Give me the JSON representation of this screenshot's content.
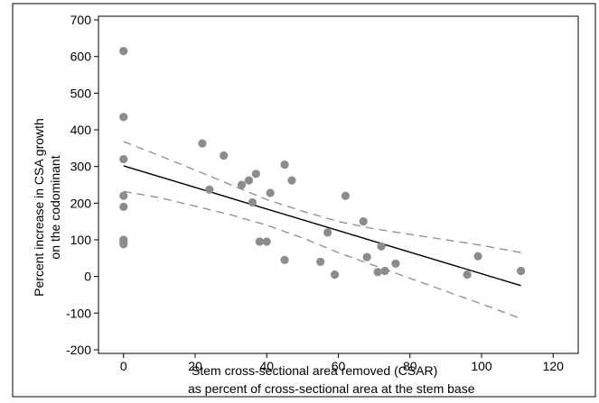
{
  "chart_data": {
    "type": "scatter",
    "title": "",
    "xlabel_lines": [
      "Stem cross-sectional area removed (CSAR)",
      "as percent of cross-sectional area at the stem base"
    ],
    "ylabel_lines": [
      "Percent increase in CSA growth",
      "on the codominant"
    ],
    "xlim": [
      -7,
      127
    ],
    "ylim": [
      -210,
      710
    ],
    "xticks": [
      0,
      20,
      40,
      60,
      80,
      100,
      120
    ],
    "yticks": [
      -200,
      -100,
      0,
      100,
      200,
      300,
      400,
      500,
      600,
      700
    ],
    "ytick_labels": [
      "-200",
      "-100",
      "0",
      "100",
      "200",
      "300",
      "400",
      "500",
      "600",
      "700"
    ],
    "grid": false,
    "point_color": "#8c8c8c",
    "points": [
      {
        "x": 0,
        "y": 615
      },
      {
        "x": 0,
        "y": 435
      },
      {
        "x": 0,
        "y": 320
      },
      {
        "x": 0,
        "y": 220
      },
      {
        "x": 0,
        "y": 190
      },
      {
        "x": 0,
        "y": 100
      },
      {
        "x": 0,
        "y": 95
      },
      {
        "x": 0,
        "y": 88
      },
      {
        "x": 24,
        "y": 237
      },
      {
        "x": 22,
        "y": 363
      },
      {
        "x": 28,
        "y": 330
      },
      {
        "x": 33,
        "y": 250
      },
      {
        "x": 35,
        "y": 262
      },
      {
        "x": 37,
        "y": 280
      },
      {
        "x": 36,
        "y": 202
      },
      {
        "x": 38,
        "y": 95
      },
      {
        "x": 40,
        "y": 95
      },
      {
        "x": 41,
        "y": 228
      },
      {
        "x": 45,
        "y": 305
      },
      {
        "x": 47,
        "y": 262
      },
      {
        "x": 45,
        "y": 45
      },
      {
        "x": 55,
        "y": 40
      },
      {
        "x": 57,
        "y": 120
      },
      {
        "x": 59,
        "y": 5
      },
      {
        "x": 62,
        "y": 220
      },
      {
        "x": 67,
        "y": 150
      },
      {
        "x": 68,
        "y": 53
      },
      {
        "x": 72,
        "y": 82
      },
      {
        "x": 71,
        "y": 12
      },
      {
        "x": 73,
        "y": 15
      },
      {
        "x": 76,
        "y": 35
      },
      {
        "x": 96,
        "y": 5
      },
      {
        "x": 99,
        "y": 55
      },
      {
        "x": 111,
        "y": 15
      }
    ],
    "fit_line": {
      "x": [
        0,
        111
      ],
      "y": [
        302,
        -25
      ],
      "color": "#000000"
    },
    "ci_lower": {
      "x": [
        0,
        10,
        20,
        30,
        40,
        50,
        60,
        70,
        80,
        90,
        100,
        111
      ],
      "y": [
        232,
        215,
        192,
        168,
        140,
        105,
        65,
        30,
        -5,
        -40,
        -75,
        -115
      ],
      "color": "#8c8c8c"
    },
    "ci_upper": {
      "x": [
        0,
        10,
        20,
        30,
        40,
        50,
        60,
        70,
        80,
        90,
        100,
        111
      ],
      "y": [
        368,
        330,
        290,
        250,
        210,
        178,
        150,
        130,
        115,
        100,
        85,
        65
      ],
      "color": "#8c8c8c"
    }
  }
}
